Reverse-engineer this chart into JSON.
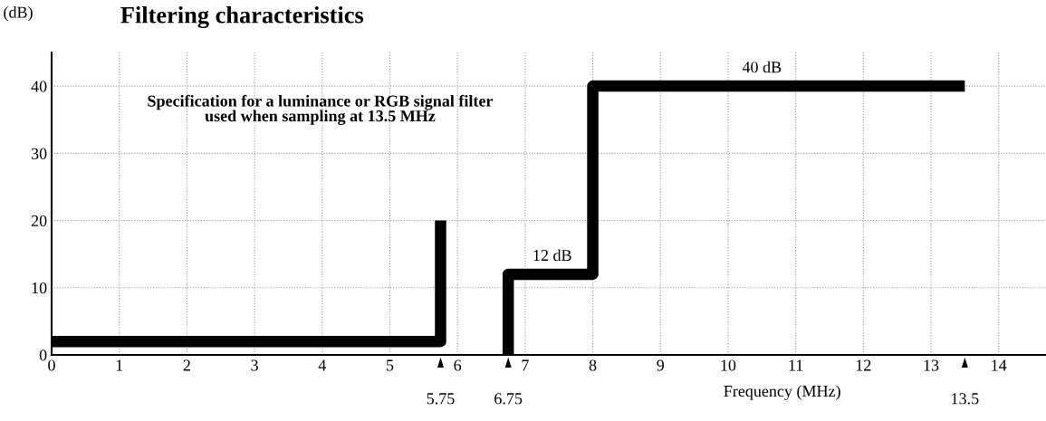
{
  "chart_data": {
    "type": "line",
    "title": "Filtering characteristics",
    "ylabel": "(dB)",
    "xlabel": "Frequency (MHz)",
    "series": [
      {
        "color": "#000000",
        "x": [
          0,
          5.75,
          5.75
        ],
        "values": [
          2,
          2,
          20
        ]
      },
      {
        "color": "#000000",
        "x": [
          6.75,
          6.75,
          8,
          8,
          13.5
        ],
        "values": [
          0,
          12,
          12,
          40,
          40
        ]
      }
    ],
    "xlim": [
      0,
      14.7
    ],
    "ylim": [
      0,
      45
    ],
    "xticks": [
      0,
      1,
      2,
      3,
      4,
      5,
      6,
      7,
      8,
      9,
      10,
      11,
      12,
      13,
      14
    ],
    "yticks": [
      0,
      10,
      20,
      30,
      40
    ],
    "x2lim": [
      0,
      14.7
    ],
    "x2ticks": [
      5.75,
      6.75,
      13.5
    ],
    "grid": true,
    "line_style": "solid",
    "marker": "none",
    "annotations": [
      "Specification for a luminance or RGB signal filter\nused when sampling at 13.5 MHz",
      {
        "text": "12 dB",
        "x": 7.4,
        "y": 12
      },
      {
        "text": "40 dB",
        "x": 10.5,
        "y": 40
      }
    ]
  }
}
